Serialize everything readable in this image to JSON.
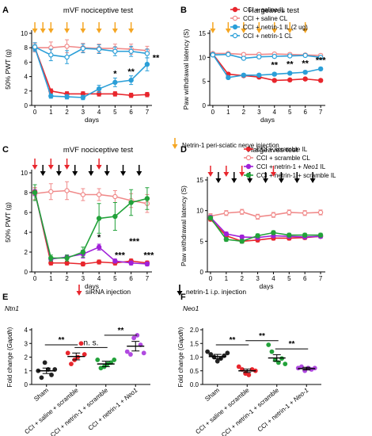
{
  "chart_data": [
    {
      "id": "A",
      "type": "line",
      "panel_label": "A",
      "title": "mVF nociceptive test",
      "xlabel": "days",
      "ylabel": "50% PWT (g)",
      "x": [
        0,
        1,
        2,
        3,
        4,
        5,
        6,
        7
      ],
      "xlim": [
        -0.2,
        7.3
      ],
      "ylim": [
        0,
        10
      ],
      "yticks": [
        0,
        2,
        4,
        6,
        8,
        10
      ],
      "xticks": [
        0,
        1,
        2,
        3,
        4,
        5,
        6,
        7
      ],
      "series": [
        {
          "name": "CCI + saline IL",
          "color": "#e8262d",
          "values": [
            8.0,
            2.0,
            1.6,
            1.6,
            1.6,
            1.6,
            1.4,
            1.5
          ],
          "err": [
            0.3,
            0.3,
            0.3,
            0.3,
            0.3,
            0.3,
            0.3,
            0.3
          ]
        },
        {
          "name": "CCI + saline CL",
          "color": "#f08a8a",
          "open": true,
          "values": [
            8.0,
            8.0,
            8.2,
            8.0,
            7.9,
            7.9,
            7.8,
            7.6
          ],
          "err": [
            0.6,
            0.8,
            0.9,
            0.6,
            0.6,
            0.6,
            0.7,
            0.6
          ]
        },
        {
          "name": "CCI + netrin-1 IL (2 ug)",
          "color": "#2b9fd8",
          "values": [
            8.0,
            1.3,
            1.2,
            1.1,
            2.3,
            3.2,
            3.5,
            5.7
          ],
          "err": [
            0.4,
            0.3,
            0.3,
            0.3,
            0.5,
            0.6,
            0.6,
            0.9
          ]
        },
        {
          "name": "CCI + netrin-1 CL",
          "color": "#2b9fd8",
          "open": true,
          "values": [
            8.1,
            7.0,
            6.7,
            7.9,
            7.8,
            7.5,
            7.5,
            7.2
          ],
          "err": [
            0.6,
            0.8,
            0.9,
            0.6,
            0.6,
            0.6,
            0.7,
            0.6
          ]
        }
      ],
      "orange_arrows": [
        0,
        0.5,
        1,
        2,
        3,
        4,
        5,
        6
      ],
      "black_arrows": [],
      "red_arrows": [],
      "annotations": [
        {
          "x": 5,
          "y": 4.0,
          "text": "*"
        },
        {
          "x": 6,
          "y": 4.3,
          "text": "**"
        },
        {
          "x": 7.55,
          "y": 6.2,
          "text": "**"
        }
      ]
    },
    {
      "id": "B",
      "type": "line",
      "panel_label": "B",
      "title": "Hargeaves test",
      "xlabel": "days",
      "ylabel": "Paw withdrawal latency (S)",
      "x": [
        0,
        1,
        2,
        3,
        4,
        5,
        6,
        7
      ],
      "xlim": [
        -0.2,
        7.3
      ],
      "ylim": [
        0,
        15
      ],
      "yticks": [
        0,
        5,
        10,
        15
      ],
      "xticks": [
        0,
        1,
        2,
        3,
        4,
        5,
        6,
        7
      ],
      "series": [
        {
          "name": "CCI + saline IL",
          "color": "#e8262d",
          "values": [
            10.7,
            6.5,
            6.2,
            5.9,
            5.2,
            5.3,
            5.5,
            5.2
          ],
          "err": [
            0.2,
            0.3,
            0.3,
            0.3,
            0.3,
            0.3,
            0.3,
            0.3
          ]
        },
        {
          "name": "CCI + saline CL",
          "color": "#f08a8a",
          "open": true,
          "values": [
            10.8,
            10.8,
            10.6,
            10.6,
            10.7,
            10.6,
            10.5,
            10.4
          ],
          "err": [
            0.3,
            0.3,
            0.3,
            0.3,
            0.3,
            0.3,
            0.3,
            0.3
          ]
        },
        {
          "name": "CCI + netrin-1 IL (2 ug)",
          "color": "#2b9fd8",
          "values": [
            10.6,
            5.8,
            6.3,
            6.3,
            6.5,
            6.7,
            6.9,
            7.6
          ],
          "err": [
            0.2,
            0.3,
            0.3,
            0.3,
            0.3,
            0.3,
            0.3,
            0.3
          ]
        },
        {
          "name": "CCI + netrin-1 CL",
          "color": "#2b9fd8",
          "open": true,
          "values": [
            10.5,
            10.6,
            9.8,
            10.1,
            10.2,
            10.3,
            10.4,
            10.0
          ],
          "err": [
            0.2,
            0.3,
            0.3,
            0.3,
            0.3,
            0.3,
            0.3,
            0.3
          ]
        }
      ],
      "orange_arrows": [
        0,
        1,
        2,
        3,
        4,
        5,
        6
      ],
      "black_arrows": [],
      "red_arrows": [],
      "annotations": [
        {
          "x": 4,
          "y": 7.8,
          "text": "**"
        },
        {
          "x": 5,
          "y": 8.0,
          "text": "**"
        },
        {
          "x": 6,
          "y": 8.2,
          "text": "**"
        },
        {
          "x": 7,
          "y": 8.8,
          "text": "***"
        }
      ]
    },
    {
      "id": "C",
      "type": "line",
      "panel_label": "C",
      "title": "mVF nociceptive test",
      "xlabel": "days",
      "ylabel": "50% PWT (g)",
      "x": [
        0,
        1,
        2,
        3,
        4,
        5,
        6,
        7
      ],
      "xlim": [
        -0.2,
        7.3
      ],
      "ylim": [
        0,
        10
      ],
      "yticks": [
        0,
        2,
        4,
        6,
        8,
        10
      ],
      "xticks": [
        0,
        1,
        2,
        3,
        4,
        5,
        6,
        7
      ],
      "series": [
        {
          "name": "CCI + scramble IL",
          "color": "#e8262d",
          "values": [
            8.1,
            0.9,
            0.9,
            0.8,
            1.0,
            0.9,
            1.1,
            0.9
          ],
          "err": [
            0.4,
            0.2,
            0.2,
            0.2,
            0.2,
            0.2,
            0.2,
            0.2
          ]
        },
        {
          "name": "CCI + scramble CL",
          "color": "#f08a8a",
          "open": true,
          "values": [
            7.9,
            8.1,
            8.2,
            7.8,
            7.8,
            7.6,
            7.2,
            6.9
          ],
          "err": [
            0.6,
            0.8,
            0.9,
            0.6,
            0.6,
            0.6,
            0.7,
            0.9
          ]
        },
        {
          "name": "CCI + netrin-1 + Neo1 IL",
          "color": "#a020d8",
          "values": [
            8.0,
            1.3,
            1.5,
            1.8,
            2.5,
            1.1,
            0.9,
            0.8
          ],
          "err": [
            0.3,
            0.2,
            0.2,
            0.4,
            0.3,
            0.2,
            0.2,
            0.2
          ]
        },
        {
          "name": "CCI + netrin-1 + scramble IL",
          "color": "#22a23a",
          "values": [
            8.0,
            1.4,
            1.4,
            2.0,
            5.4,
            5.6,
            7.0,
            7.4
          ],
          "err": [
            0.8,
            0.3,
            0.3,
            0.5,
            1.5,
            1.4,
            1.3,
            1.1
          ]
        }
      ],
      "orange_arrows": [],
      "black_arrows": [
        0.5,
        1.5,
        2.5,
        3.5,
        4.5,
        5.5,
        6.5
      ],
      "red_arrows": [
        0,
        1,
        2,
        4
      ],
      "annotations": [
        {
          "x": 4,
          "y": 3.2,
          "text": "*"
        },
        {
          "x": 5.3,
          "y": 1.4,
          "text": "***"
        },
        {
          "x": 6.2,
          "y": 2.8,
          "text": "***"
        },
        {
          "x": 7.1,
          "y": 1.4,
          "text": "***"
        }
      ]
    },
    {
      "id": "D",
      "type": "line",
      "panel_label": "D",
      "title": "Hargeaves test",
      "xlabel": "days",
      "ylabel": "Paw withdrawal latency (S)",
      "x": [
        0,
        1,
        2,
        3,
        4,
        5,
        6,
        7
      ],
      "xlim": [
        -0.2,
        7.3
      ],
      "ylim": [
        0,
        15
      ],
      "yticks": [
        0,
        5,
        10,
        15
      ],
      "xticks": [
        0,
        1,
        2,
        3,
        4,
        5,
        6,
        7
      ],
      "series": [
        {
          "name": "CCI + scramble IL",
          "color": "#e8262d",
          "values": [
            8.6,
            5.9,
            5.0,
            5.2,
            5.5,
            5.5,
            5.6,
            5.8
          ],
          "err": [
            0.3,
            0.3,
            0.3,
            0.3,
            0.3,
            0.3,
            0.3,
            0.3
          ]
        },
        {
          "name": "CCI + scramble CL",
          "color": "#f08a8a",
          "open": true,
          "values": [
            9.1,
            9.6,
            9.8,
            9.0,
            9.3,
            9.7,
            9.6,
            9.7
          ],
          "err": [
            0.4,
            0.4,
            0.4,
            0.4,
            0.4,
            0.4,
            0.4,
            0.4
          ]
        },
        {
          "name": "CCI + netrin-1 + Neo1 IL",
          "color": "#a020d8",
          "values": [
            8.9,
            6.2,
            5.7,
            5.6,
            5.9,
            5.8,
            5.7,
            5.8
          ],
          "err": [
            0.3,
            0.3,
            0.3,
            0.3,
            0.3,
            0.3,
            0.3,
            0.3
          ]
        },
        {
          "name": "CCI + netrin-1 + scramble IL",
          "color": "#22a23a",
          "values": [
            8.8,
            5.3,
            5.0,
            5.9,
            6.4,
            6.0,
            6.0,
            6.0
          ],
          "err": [
            0.3,
            0.3,
            0.3,
            0.3,
            0.3,
            0.3,
            0.3,
            0.3
          ]
        }
      ],
      "orange_arrows": [],
      "black_arrows": [
        0.5,
        1.5,
        2.5,
        3.5,
        4.5,
        5.5,
        6.5
      ],
      "red_arrows": [
        0,
        1,
        2,
        4
      ],
      "annotations": []
    },
    {
      "id": "E",
      "type": "scatter",
      "panel_label": "E",
      "gene": "Ntn1",
      "ylabel": "Fold change (Gapdh)",
      "ylim": [
        0,
        4
      ],
      "yticks": [
        "0",
        "1",
        "2",
        "3",
        "4"
      ],
      "categories": [
        "Sham",
        "CCI + saline + scramble",
        "CCI + netrin-1 + scramble",
        "CCI + netrin-1 + Neo1"
      ],
      "colors": [
        "#222222",
        "#e8262d",
        "#22a23a",
        "#b04ae0"
      ],
      "means": [
        1.0,
        2.05,
        1.5,
        2.8
      ],
      "sems": [
        0.2,
        0.25,
        0.2,
        0.35
      ],
      "points": [
        [
          1.0,
          0.5,
          1.6,
          1.1,
          0.7,
          1.1
        ],
        [
          2.3,
          1.5,
          1.8,
          2.0,
          3.0,
          2.2
        ],
        [
          1.8,
          1.2,
          1.3,
          1.5,
          1.6,
          1.8
        ],
        [
          2.4,
          2.2,
          3.4,
          3.6,
          2.9,
          2.3
        ]
      ],
      "brackets": [
        {
          "from": 0,
          "to": 1,
          "y": 2.9,
          "text": "**"
        },
        {
          "from": 1,
          "to": 2,
          "y": 2.7,
          "text": "n. s."
        },
        {
          "from": 2,
          "to": 3,
          "y": 3.6,
          "text": "**"
        }
      ]
    },
    {
      "id": "F",
      "type": "scatter",
      "panel_label": "F",
      "gene": "Neo1",
      "ylabel": "Fold change (Gapdh)",
      "ylim": [
        0,
        2.0
      ],
      "yticks": [
        "0.0",
        "0.5",
        "1.0",
        "1.5",
        "2.0"
      ],
      "categories": [
        "Sham",
        "CCI + saline + scramble",
        "CCI + netrin-1 + scramble",
        "CCI + netrin-1 + Neo-1"
      ],
      "colors": [
        "#222222",
        "#e8262d",
        "#22a23a",
        "#b04ae0"
      ],
      "means": [
        1.02,
        0.5,
        0.97,
        0.58
      ],
      "sems": [
        0.08,
        0.06,
        0.12,
        0.05
      ],
      "points": [
        [
          1.2,
          1.1,
          1.0,
          0.85,
          0.95,
          1.05,
          1.15
        ],
        [
          0.65,
          0.55,
          0.4,
          0.35,
          0.55,
          0.5
        ],
        [
          1.45,
          1.2,
          0.9,
          0.8,
          0.95,
          0.75
        ],
        [
          0.6,
          0.65,
          0.5,
          0.6,
          0.55,
          0.6
        ]
      ],
      "brackets": [
        {
          "from": 0,
          "to": 1,
          "y": 1.45,
          "text": "**"
        },
        {
          "from": 1,
          "to": 2,
          "y": 1.6,
          "text": "**"
        },
        {
          "from": 2,
          "to": 3,
          "y": 1.3,
          "text": "**"
        }
      ]
    }
  ],
  "captions": {
    "orange_legend": "Netrin-1 peri-sciatic nerve injection",
    "red_legend": "siRNA injection",
    "black_legend": "netrin-1 i.p. injection"
  },
  "colors": {
    "orange": "#f5a623",
    "red": "#e8262d",
    "black": "#000000"
  }
}
